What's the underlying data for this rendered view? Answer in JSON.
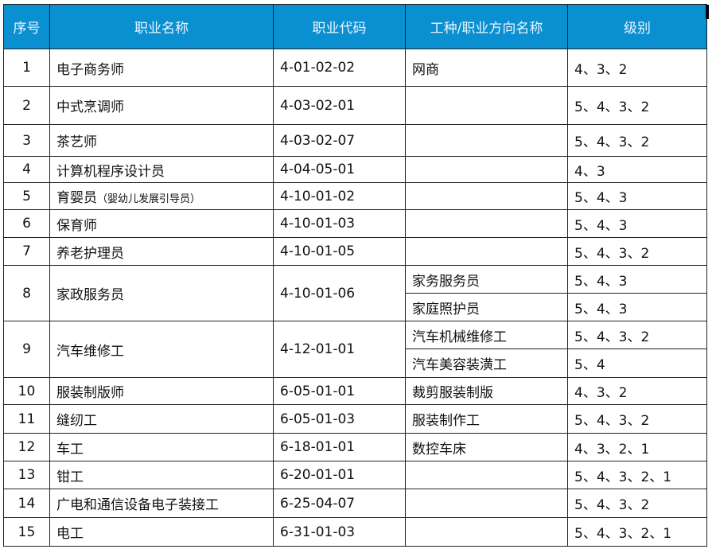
{
  "header": {
    "index": "序号",
    "name": "职业名称",
    "code": "职业代码",
    "direction": "工种/职业方向名称",
    "level": "级别"
  },
  "colors": {
    "header_bg": "#0a8fd0",
    "header_text": "#eaf6ff",
    "border": "#222222"
  },
  "rows": [
    {
      "index": "1",
      "name": "电子商务师",
      "code": "4-01-02-02",
      "subs": [
        {
          "direction": "网商",
          "level": "4、3、2"
        }
      ]
    },
    {
      "index": "2",
      "name": "中式烹调师",
      "code": "4-03-02-01",
      "subs": [
        {
          "direction": "",
          "level": "5、4、3、2"
        }
      ]
    },
    {
      "index": "3",
      "name": "茶艺师",
      "code": "4-03-02-07",
      "subs": [
        {
          "direction": "",
          "level": "5、4、3、2"
        }
      ]
    },
    {
      "index": "4",
      "name": "计算机程序设计员",
      "code": "4-04-05-01",
      "subs": [
        {
          "direction": "",
          "level": "4、3"
        }
      ]
    },
    {
      "index": "5",
      "name": "育婴员",
      "name_note": "（婴幼儿发展引导员）",
      "code": "4-10-01-02",
      "subs": [
        {
          "direction": "",
          "level": "5、4、3"
        }
      ]
    },
    {
      "index": "6",
      "name": "保育师",
      "code": "4-10-01-03",
      "subs": [
        {
          "direction": "",
          "level": "5、4、3"
        }
      ]
    },
    {
      "index": "7",
      "name": "养老护理员",
      "code": "4-10-01-05",
      "subs": [
        {
          "direction": "",
          "level": "5、4、3、2"
        }
      ]
    },
    {
      "index": "8",
      "name": "家政服务员",
      "code": "4-10-01-06",
      "subs": [
        {
          "direction": "家务服务员",
          "level": "5、4、3"
        },
        {
          "direction": "家庭照护员",
          "level": "5、4、3"
        }
      ]
    },
    {
      "index": "9",
      "name": "汽车维修工",
      "code": "4-12-01-01",
      "subs": [
        {
          "direction": "汽车机械维修工",
          "level": "5、4、3、2"
        },
        {
          "direction": "汽车美容装潢工",
          "level": "5、4"
        }
      ]
    },
    {
      "index": "10",
      "name": "服装制版师",
      "code": "6-05-01-01",
      "subs": [
        {
          "direction": "裁剪服装制版",
          "level": "4、3、2"
        }
      ]
    },
    {
      "index": "11",
      "name": "缝纫工",
      "code": "6-05-01-03",
      "subs": [
        {
          "direction": "服装制作工",
          "level": "5、4、3、2"
        }
      ]
    },
    {
      "index": "12",
      "name": "车工",
      "code": "6-18-01-01",
      "subs": [
        {
          "direction": "数控车床",
          "level": "4、3、2、1"
        }
      ]
    },
    {
      "index": "13",
      "name": "钳工",
      "code": "6-20-01-01",
      "subs": [
        {
          "direction": "",
          "level": "5、4、3、2、1"
        }
      ]
    },
    {
      "index": "14",
      "name": "广电和通信设备电子装接工",
      "code": "6-25-04-07",
      "subs": [
        {
          "direction": "",
          "level": "5、4、3、2"
        }
      ]
    },
    {
      "index": "15",
      "name": "电工",
      "code": "6-31-01-03",
      "subs": [
        {
          "direction": "",
          "level": "5、4、3、2、1"
        }
      ]
    }
  ]
}
